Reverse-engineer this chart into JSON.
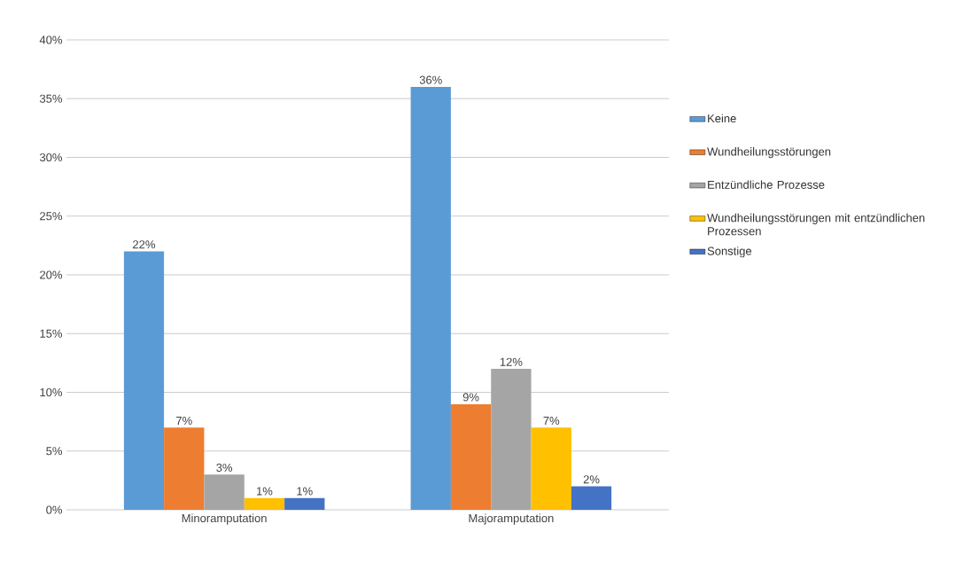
{
  "chart_data": {
    "type": "bar",
    "categories": [
      "Minoramputation",
      "Majoramputation"
    ],
    "series": [
      {
        "name": "Keine",
        "color": "#5b9bd5",
        "values": [
          22,
          36
        ],
        "value_labels": [
          "22%",
          "36%"
        ]
      },
      {
        "name": "Wundheilungsstörungen",
        "color": "#ed7d31",
        "values": [
          7,
          9
        ],
        "value_labels": [
          "7%",
          "9%"
        ]
      },
      {
        "name": "Entzündliche Prozesse",
        "color": "#a5a5a5",
        "values": [
          3,
          12
        ],
        "value_labels": [
          "3%",
          "12%"
        ]
      },
      {
        "name": "Wundheilungsstörungen mit entzündlichen Prozessen",
        "color": "#ffc000",
        "values": [
          1,
          7
        ],
        "value_labels": [
          "1%",
          "7%"
        ]
      },
      {
        "name": "Sonstige",
        "color": "#4472c4",
        "values": [
          1,
          2
        ],
        "value_labels": [
          "1%",
          "2%"
        ]
      }
    ],
    "ylim": [
      0,
      40
    ],
    "yticks": [
      {
        "value": 0,
        "label": "0%"
      },
      {
        "value": 5,
        "label": "5%"
      },
      {
        "value": 10,
        "label": "10%"
      },
      {
        "value": 15,
        "label": "15%"
      },
      {
        "value": 20,
        "label": "20%"
      },
      {
        "value": 25,
        "label": "25%"
      },
      {
        "value": 30,
        "label": "30%"
      },
      {
        "value": 35,
        "label": "35%"
      },
      {
        "value": 40,
        "label": "40%"
      }
    ],
    "grid": "y",
    "legend": "right"
  }
}
